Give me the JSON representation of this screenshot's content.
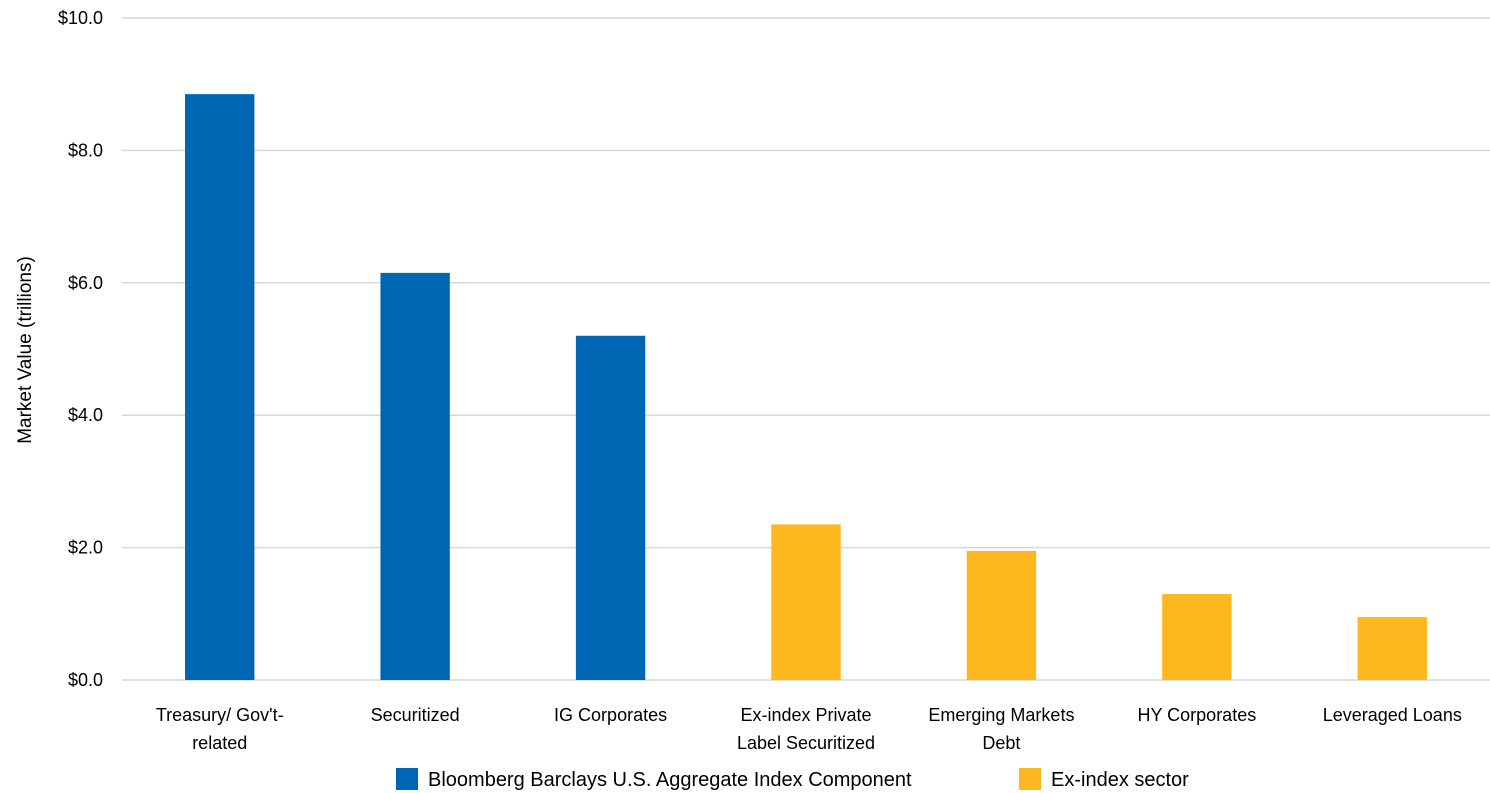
{
  "chart_data": {
    "type": "bar",
    "ylabel": "Market Value (trillions)",
    "ylim": [
      0,
      10
    ],
    "yticks": [
      "$0.0",
      "$2.0",
      "$4.0",
      "$6.0",
      "$8.0",
      "$10.0"
    ],
    "grid": true,
    "legend_position": "bottom",
    "categories": [
      [
        "Treasury/ Gov't-",
        "related"
      ],
      [
        "Securitized"
      ],
      [
        "IG Corporates"
      ],
      [
        "Ex-index Private",
        "Label Securitized"
      ],
      [
        "Emerging Markets",
        "Debt"
      ],
      [
        "HY Corporates"
      ],
      [
        "Leveraged Loans"
      ]
    ],
    "values": [
      8.85,
      6.15,
      5.2,
      2.35,
      1.95,
      1.3,
      0.95
    ],
    "bar_groups": [
      0,
      0,
      0,
      1,
      1,
      1,
      1
    ],
    "legend": [
      {
        "label": "Bloomberg Barclays U.S. Aggregate Index Component",
        "color": "#0066b3"
      },
      {
        "label": "Ex-index sector",
        "color": "#fdb71f"
      }
    ]
  }
}
